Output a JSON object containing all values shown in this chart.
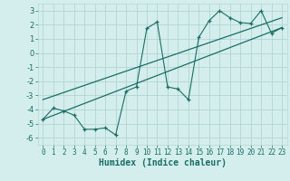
{
  "xlabel": "Humidex (Indice chaleur)",
  "bg_color": "#d4eeed",
  "grid_color": "#b8d8d6",
  "line_color": "#1a6e65",
  "scatter_x": [
    0,
    1,
    2,
    3,
    4,
    5,
    6,
    7,
    8,
    9,
    10,
    11,
    12,
    13,
    14,
    15,
    16,
    17,
    18,
    19,
    20,
    21,
    22,
    23
  ],
  "scatter_y": [
    -4.7,
    -3.9,
    -4.1,
    -4.4,
    -5.4,
    -5.4,
    -5.3,
    -5.8,
    -2.7,
    -2.4,
    1.75,
    2.2,
    -2.4,
    -2.55,
    -3.3,
    1.1,
    2.3,
    3.0,
    2.5,
    2.15,
    2.1,
    3.0,
    1.4,
    1.8
  ],
  "line1_x": [
    0,
    23
  ],
  "line1_y": [
    -4.7,
    1.8
  ],
  "line2_x": [
    0,
    23
  ],
  "line2_y": [
    -3.3,
    2.5
  ],
  "xlim": [
    -0.5,
    23.5
  ],
  "ylim": [
    -6.5,
    3.5
  ],
  "xticks": [
    0,
    1,
    2,
    3,
    4,
    5,
    6,
    7,
    8,
    9,
    10,
    11,
    12,
    13,
    14,
    15,
    16,
    17,
    18,
    19,
    20,
    21,
    22,
    23
  ],
  "yticks": [
    -6,
    -5,
    -4,
    -3,
    -2,
    -1,
    0,
    1,
    2,
    3
  ],
  "xlabel_fontsize": 7,
  "tick_fontsize": 5.5
}
